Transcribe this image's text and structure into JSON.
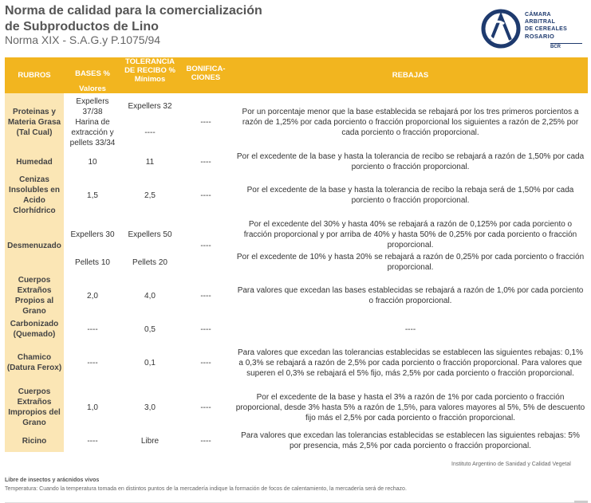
{
  "header": {
    "title_line1": "Norma de calidad para la comercialización",
    "title_line2": "de Subproductos de Lino",
    "subtitle": "Norma XIX - S.A.G.y P.1075/94"
  },
  "logo": {
    "line1": "CÁMARA",
    "line2": "ARBITRAL",
    "line3": "DE CEREALES",
    "line4": "ROSARIO",
    "abbr": "BCR",
    "colors": {
      "navy": "#1e3a6e"
    }
  },
  "colors": {
    "header_bg": "#f2b51f",
    "rubro_bg": "#fbe6b5"
  },
  "table": {
    "headers": {
      "rubros": "RUBROS",
      "bases": "BASES %",
      "bases_sub": "Valores",
      "tolerancia": "TOLERANCIA DE RECIBO %",
      "tolerancia_sub": "Mínimos",
      "bonificaciones": "BONIFICA-CIONES",
      "rebajas": "REBAJAS"
    },
    "rows": {
      "proteinas": {
        "rubro": "Proteinas y Materia Grasa (Tal Cual)",
        "base1": "Expellers 37/38",
        "base2": "Harina de extracción y pellets 33/34",
        "tol1": "Expellers 32",
        "tol2": "----",
        "bonif": "----",
        "rebaja": "Por un porcentaje menor que la base establecida se rebajará por los tres primeros porcientos a razón de 1,25% por cada porciento o fracción proporcional  los siguientes a razón de 2,25% por cada porciento o fracción proporcional."
      },
      "humedad": {
        "rubro": "Humedad",
        "base": "10",
        "tol": "11",
        "bonif": "----",
        "rebaja": "Por el excedente de la base y hasta la tolerancia de recibo se rebajará a razón de 1,50% por cada porciento o fracción proporcional."
      },
      "cenizas": {
        "rubro": "Cenizas Insolubles en Acido Clorhídrico",
        "base": "1,5",
        "tol": "2,5",
        "bonif": "----",
        "rebaja": "Por el excedente de la base y hasta la tolerancia de recibo la rebaja será de 1,50% por cada porciento o fracción proporcional."
      },
      "desmenuzado": {
        "rubro": "Desmenuzado",
        "base1": "Expellers 30",
        "tol1": "Expellers 50",
        "rebaja1": "Por el excedente del 30% y hasta 40% se rebajará a razón de 0,125% por cada porciento o fracción proporcional y por arriba de 40% y hasta 50% de 0,25% por cada porciento o fracción proporcional.",
        "base2": "Pellets 10",
        "tol2": "Pellets 20",
        "bonif": "----",
        "rebaja2": "Por el excedente de 10% y hasta 20% se rebajará a razón de 0,25% por cada porciento o fracción proporcional."
      },
      "cuerpos_propios": {
        "rubro": "Cuerpos Extraños Propios al Grano",
        "base": "2,0",
        "tol": "4,0",
        "bonif": "----",
        "rebaja": "Para valores que excedan las bases establecidas se rebajará a razón de 1,0% por cada porciento o fracción proporcional."
      },
      "carbonizado": {
        "rubro": "Carbonizado (Quemado)",
        "base": "----",
        "tol": "0,5",
        "bonif": "----",
        "rebaja": "----"
      },
      "chamico": {
        "rubro": "Chamico (Datura Ferox)",
        "base": "----",
        "tol": "0,1",
        "bonif": "----",
        "rebaja": "Para valores que excedan las tolerancias establecidas se establecen las siguientes rebajas: 0,1% a 0,3% se rebajará a razón de 2,5% por cada porciento o fracción proporcional. Para valores que superen el 0,3% se rebajará el 5% fijo, más 2,5% por cada porciento o fracción proporcional."
      },
      "cuerpos_impropios": {
        "rubro": "Cuerpos Extraños Impropios del Grano",
        "base": "1,0",
        "tol": "3,0",
        "bonif": "----",
        "rebaja": "Por el excedente de la base y hasta el 3% a razón de 1% por cada porciento o fracción proporcional, desde 3% hasta 5% a razón de 1,5%, para valores mayores al 5%, 5% de descuento fijo más el 2,5% por cada porciento o fracción proporcional."
      },
      "ricino": {
        "rubro": "Ricino",
        "base": "----",
        "tol": "Libre",
        "bonif": "----",
        "rebaja": "Para valores que excedan las tolerancias establecidas se establecen las siguientes rebajas: 5% por presencia, más 2,5% por cada porciento o fracción proporcional."
      }
    }
  },
  "footer": {
    "source": "Instituto Argentino de Sanidad y Calidad Vegetal",
    "notes_title": "Libre de insectos y arácnidos vivos",
    "notes_text": "Temperatura: Cuando la temperatura tomada en distintos puntos de la mercadería indique la formación de focos de calentamiento, la mercadería será de rechazo."
  }
}
